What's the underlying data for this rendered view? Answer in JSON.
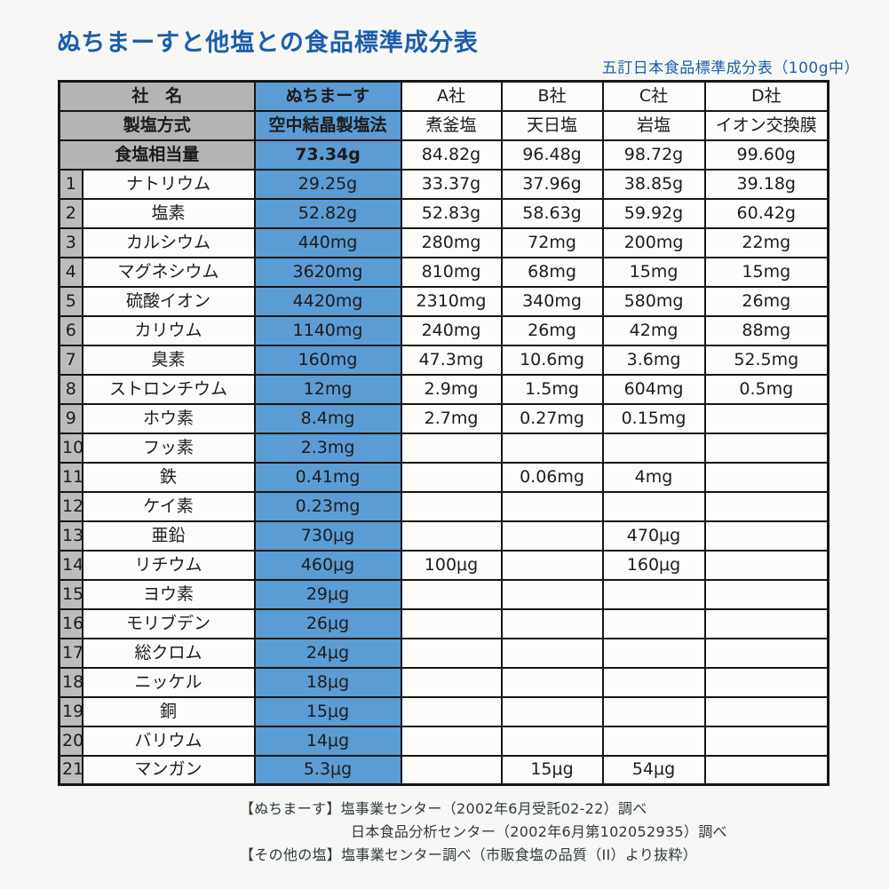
{
  "page": {
    "title": "ぬちまーすと他塩との食品標準成分表",
    "subtitle": "五訂日本食品標準成分表（100g中）"
  },
  "colors": {
    "accent_blue": "#5b9cd4",
    "title_blue": "#1d5dac",
    "header_gray": "#b4b4b2",
    "border": "#161616"
  },
  "table": {
    "header_rows": [
      {
        "label": "社　名",
        "values": [
          "ぬちまーす",
          "A社",
          "B社",
          "C社",
          "D社"
        ]
      },
      {
        "label": "製塩方式",
        "values": [
          "空中結晶製塩法",
          "煮釜塩",
          "天日塩",
          "岩塩",
          "イオン交換膜"
        ]
      },
      {
        "label": "食塩相当量",
        "values": [
          "73.34g",
          "84.82g",
          "96.48g",
          "98.72g",
          "99.60g"
        ]
      }
    ],
    "rows": [
      {
        "no": "1",
        "label": "ナトリウム",
        "values": [
          "29.25g",
          "33.37g",
          "37.96g",
          "38.85g",
          "39.18g"
        ]
      },
      {
        "no": "2",
        "label": "塩素",
        "values": [
          "52.82g",
          "52.83g",
          "58.63g",
          "59.92g",
          "60.42g"
        ]
      },
      {
        "no": "3",
        "label": "カルシウム",
        "values": [
          "440mg",
          "280mg",
          "72mg",
          "200mg",
          "22mg"
        ]
      },
      {
        "no": "4",
        "label": "マグネシウム",
        "values": [
          "3620mg",
          "810mg",
          "68mg",
          "15mg",
          "15mg"
        ]
      },
      {
        "no": "5",
        "label": "硫酸イオン",
        "values": [
          "4420mg",
          "2310mg",
          "340mg",
          "580mg",
          "26mg"
        ]
      },
      {
        "no": "6",
        "label": "カリウム",
        "values": [
          "1140mg",
          "240mg",
          "26mg",
          "42mg",
          "88mg"
        ]
      },
      {
        "no": "7",
        "label": "臭素",
        "values": [
          "160mg",
          "47.3mg",
          "10.6mg",
          "3.6mg",
          "52.5mg"
        ]
      },
      {
        "no": "8",
        "label": "ストロンチウム",
        "values": [
          "12mg",
          "2.9mg",
          "1.5mg",
          "604mg",
          "0.5mg"
        ]
      },
      {
        "no": "9",
        "label": "ホウ素",
        "values": [
          "8.4mg",
          "2.7mg",
          "0.27mg",
          "0.15mg",
          ""
        ]
      },
      {
        "no": "10",
        "label": "フッ素",
        "values": [
          "2.3mg",
          "",
          "",
          "",
          ""
        ]
      },
      {
        "no": "11",
        "label": "鉄",
        "values": [
          "0.41mg",
          "",
          "0.06mg",
          "4mg",
          ""
        ]
      },
      {
        "no": "12",
        "label": "ケイ素",
        "values": [
          "0.23mg",
          "",
          "",
          "",
          ""
        ]
      },
      {
        "no": "13",
        "label": "亜鉛",
        "values": [
          "730μg",
          "",
          "",
          "470μg",
          ""
        ]
      },
      {
        "no": "14",
        "label": "リチウム",
        "values": [
          "460μg",
          "100μg",
          "",
          "160μg",
          ""
        ]
      },
      {
        "no": "15",
        "label": "ヨウ素",
        "values": [
          "29μg",
          "",
          "",
          "",
          ""
        ]
      },
      {
        "no": "16",
        "label": "モリブデン",
        "values": [
          "26μg",
          "",
          "",
          "",
          ""
        ]
      },
      {
        "no": "17",
        "label": "総クロム",
        "values": [
          "24μg",
          "",
          "",
          "",
          ""
        ]
      },
      {
        "no": "18",
        "label": "ニッケル",
        "values": [
          "18μg",
          "",
          "",
          "",
          ""
        ]
      },
      {
        "no": "19",
        "label": "銅",
        "values": [
          "15μg",
          "",
          "",
          "",
          ""
        ]
      },
      {
        "no": "20",
        "label": "バリウム",
        "values": [
          "14μg",
          "",
          "",
          "",
          ""
        ]
      },
      {
        "no": "21",
        "label": "マンガン",
        "values": [
          "5.3μg",
          "",
          "15μg",
          "54μg",
          ""
        ]
      }
    ]
  },
  "footer": {
    "lines": [
      {
        "text": "【ぬちまーす】塩事業センター（2002年6月受託02-22）調べ",
        "indent": false
      },
      {
        "text": "日本食品分析センター（2002年6月第102052935）調べ",
        "indent": true
      },
      {
        "text": "【その他の塩】塩事業センター調べ（市販食塩の品質（II）より抜粋）",
        "indent": false
      }
    ]
  }
}
